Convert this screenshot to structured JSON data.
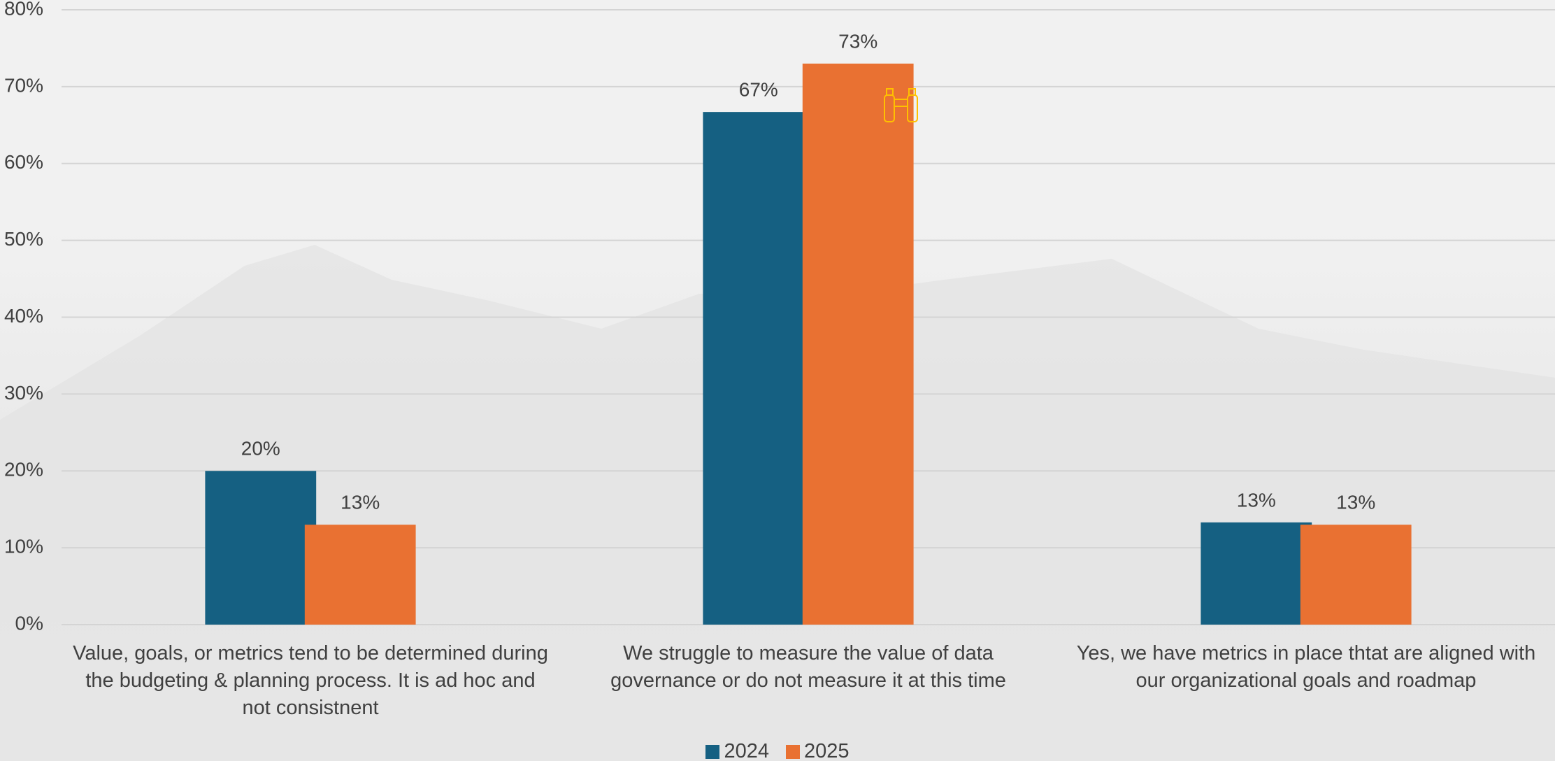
{
  "chart_data": {
    "type": "bar",
    "categories": [
      "Value, goals, or metrics tend to be determined during the budgeting & planning process. It is ad hoc and not consistnent",
      "We struggle to measure the value of data governance or do not measure it at this time",
      "Yes, we have metrics in place thtat are aligned with our organizational goals and roadmap"
    ],
    "series": [
      {
        "name": "2024",
        "color": "#156082",
        "values": [
          20,
          66.7,
          13.3
        ],
        "value_labels": [
          "20%",
          "67%",
          "13%"
        ]
      },
      {
        "name": "2025",
        "color": "#e97132",
        "values": [
          13,
          73,
          13
        ],
        "value_labels": [
          "13%",
          "73%",
          "13%"
        ]
      }
    ],
    "ylim": [
      0,
      80
    ],
    "yticks": [
      {
        "value": 0,
        "label": "0%"
      },
      {
        "value": 10,
        "label": "10%"
      },
      {
        "value": 20,
        "label": "20%"
      },
      {
        "value": 30,
        "label": "30%"
      },
      {
        "value": 40,
        "label": "40%"
      },
      {
        "value": 50,
        "label": "50%"
      },
      {
        "value": 60,
        "label": "60%"
      },
      {
        "value": 70,
        "label": "70%"
      },
      {
        "value": 80,
        "label": "80%"
      }
    ],
    "grid": true,
    "legend": "bottom"
  }
}
